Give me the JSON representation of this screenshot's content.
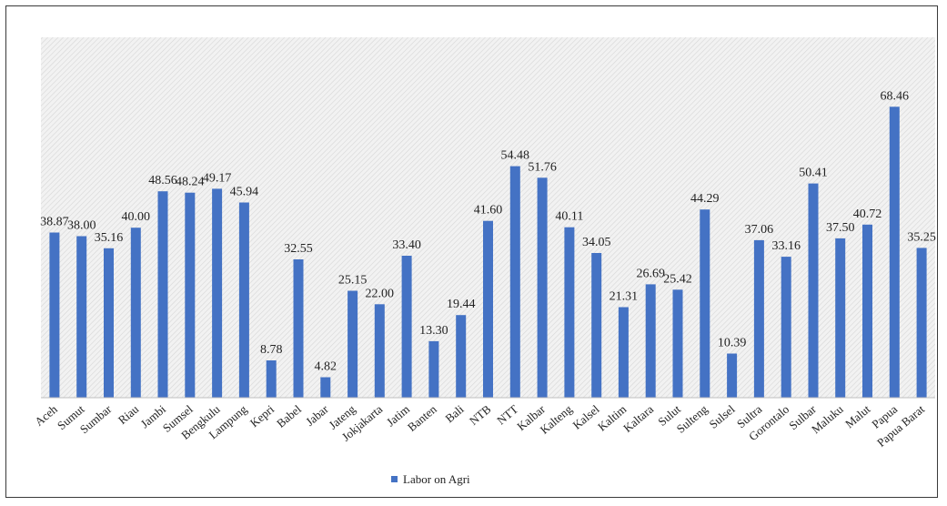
{
  "chart_data": {
    "type": "bar",
    "categories": [
      "Aceh",
      "Sumut",
      "Sumbar",
      "Riau",
      "Jambi",
      "Sumsel",
      "Bengkulu",
      "Lampung",
      "Kepri",
      "Babel",
      "Jabar",
      "Jateng",
      "Jokjakarta",
      "Jatim",
      "Banten",
      "Bali",
      "NTB",
      "NTT",
      "Kalbar",
      "Kalteng",
      "Kalsel",
      "Kaltim",
      "Kaltara",
      "Sulut",
      "Sulteng",
      "Sulsel",
      "Sultra",
      "Gorontalo",
      "Sulbar",
      "Maluku",
      "Malut",
      "Papua",
      "Papua Barat"
    ],
    "series": [
      {
        "name": "Labor on Agri",
        "values": [
          38.87,
          38.0,
          35.16,
          40.0,
          48.56,
          48.24,
          49.17,
          45.94,
          8.78,
          32.55,
          4.82,
          25.15,
          22.0,
          33.4,
          13.3,
          19.44,
          41.6,
          54.48,
          51.76,
          40.11,
          34.05,
          21.31,
          26.69,
          25.42,
          44.29,
          10.39,
          37.06,
          33.16,
          50.41,
          37.5,
          40.72,
          68.46,
          35.25
        ],
        "labels": [
          "38.87",
          "38.00",
          "35.16",
          "40.00",
          "48.56",
          "48.24",
          "49.17",
          "45.94",
          "8.78",
          "32.55",
          "4.82",
          "25.15",
          "22.00",
          "33.40",
          "13.30",
          "19.44",
          "41.60",
          "54.48",
          "51.76",
          "40.11",
          "34.05",
          "21.31",
          "26.69",
          "25.42",
          "44.29",
          "10.39",
          "37.06",
          "33.16",
          "50.41",
          "37.50",
          "40.72",
          "68.46",
          "35.25"
        ],
        "color": "#4472c4"
      }
    ],
    "ylim": [
      0,
      75
    ],
    "grid": false,
    "plot_background": "hatched",
    "legend_position": "bottom-center",
    "title": "",
    "xlabel": "",
    "ylabel": ""
  }
}
